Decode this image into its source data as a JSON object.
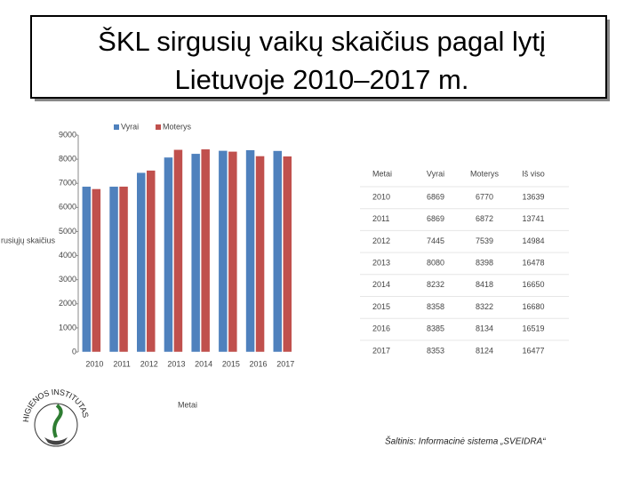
{
  "chart_data": {
    "type": "bar",
    "title": "ŠKL sirgusių vaikų skaičius pagal lytį",
    "subtitle": "Lietuvoje 2010–2017 m.",
    "x_label": "Metai",
    "y_label": "rusiųjų skaičius",
    "categories": [
      "2010",
      "2011",
      "2012",
      "2013",
      "2014",
      "2015",
      "2016",
      "2017"
    ],
    "series": [
      {
        "name": "Vyrai",
        "color": "#4f81bd",
        "values": [
          6869,
          6869,
          7445,
          8080,
          8232,
          8358,
          8385,
          8353
        ]
      },
      {
        "name": "Moterys",
        "color": "#c0504d",
        "values": [
          6770,
          6872,
          7539,
          8398,
          8418,
          8322,
          8134,
          8124
        ]
      }
    ],
    "ylim": [
      0,
      9000
    ],
    "yticks": [
      0,
      1000,
      2000,
      3000,
      4000,
      5000,
      6000,
      7000,
      8000,
      9000
    ]
  },
  "table": {
    "header": [
      "Metai",
      "Vyrai",
      "Moterys",
      "Iš viso"
    ],
    "rows": [
      [
        2010,
        6869,
        6770,
        13639
      ],
      [
        2011,
        6869,
        6872,
        13741
      ],
      [
        2012,
        7445,
        7539,
        14984
      ],
      [
        2013,
        8080,
        8398,
        16478
      ],
      [
        2014,
        8232,
        8418,
        16650
      ],
      [
        2015,
        8358,
        8322,
        16680
      ],
      [
        2016,
        8385,
        8134,
        16519
      ],
      [
        2017,
        8353,
        8124,
        16477
      ]
    ]
  },
  "logo": {
    "text": "HIGIENOS INSTITUTAS"
  },
  "source": "Šaltinis: Informacinė sistema „SVEIDRA“"
}
